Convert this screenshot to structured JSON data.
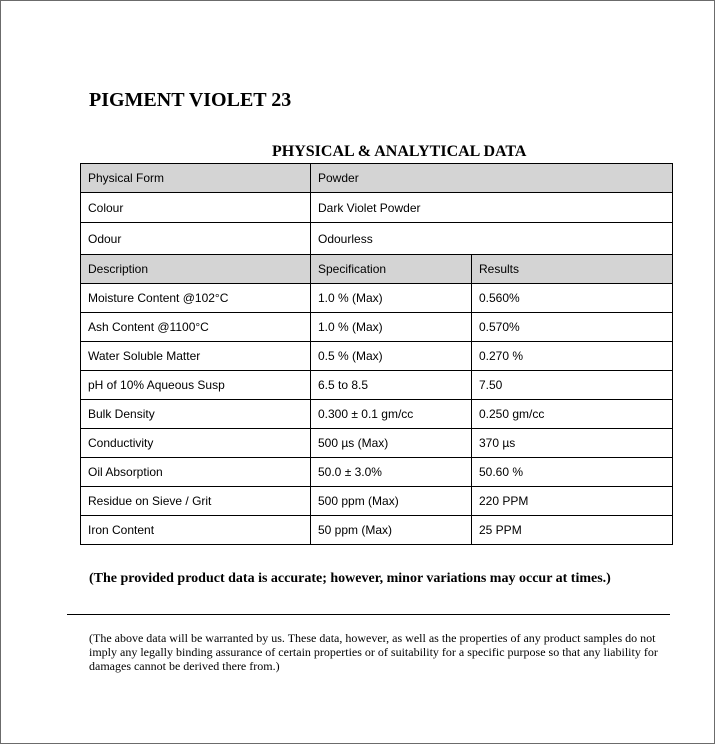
{
  "title": "PIGMENT VIOLET 23",
  "subtitle": "PHYSICAL & ANALYTICAL DATA",
  "physical": [
    {
      "label": "Physical Form",
      "value": "Powder"
    },
    {
      "label": "Colour",
      "value": "Dark Violet Powder"
    },
    {
      "label": "Odour",
      "value": "Odourless"
    }
  ],
  "headers": {
    "description": "Description",
    "specification": "Specification",
    "results": "Results"
  },
  "rows": [
    {
      "description": "Moisture Content @102°C",
      "specification": "1.0 % (Max)",
      "result": "0.560%"
    },
    {
      "description": "Ash Content @1100°C",
      "specification": "1.0 % (Max)",
      "result": "0.570%"
    },
    {
      "description": "Water Soluble Matter",
      "specification": "0.5 % (Max)",
      "result": "0.270 %"
    },
    {
      "description": "pH of 10% Aqueous Susp",
      "specification": "6.5 to 8.5",
      "result": "7.50"
    },
    {
      "description": "Bulk Density",
      "specification": "0.300 ± 0.1 gm/cc",
      "result": "0.250 gm/cc"
    },
    {
      "description": "Conductivity",
      "specification": "500 µs (Max)",
      "result": "370 µs"
    },
    {
      "description": "Oil Absorption",
      "specification": "50.0 ± 3.0%",
      "result": "50.60 %"
    },
    {
      "description": "Residue on Sieve / Grit",
      "specification": "500 ppm (Max)",
      "result": "220 PPM"
    },
    {
      "description": "Iron Content",
      "specification": "50 ppm (Max)",
      "result": "25 PPM"
    }
  ],
  "note": "(The provided product data is accurate; however, minor variations may occur at times.)",
  "disclaimer": "(The above data will be warranted by us. These data, however, as well as the properties of any product samples do not imply any legally binding assurance of certain properties or of suitability for a specific purpose so that any liability for damages cannot be derived there from.)"
}
